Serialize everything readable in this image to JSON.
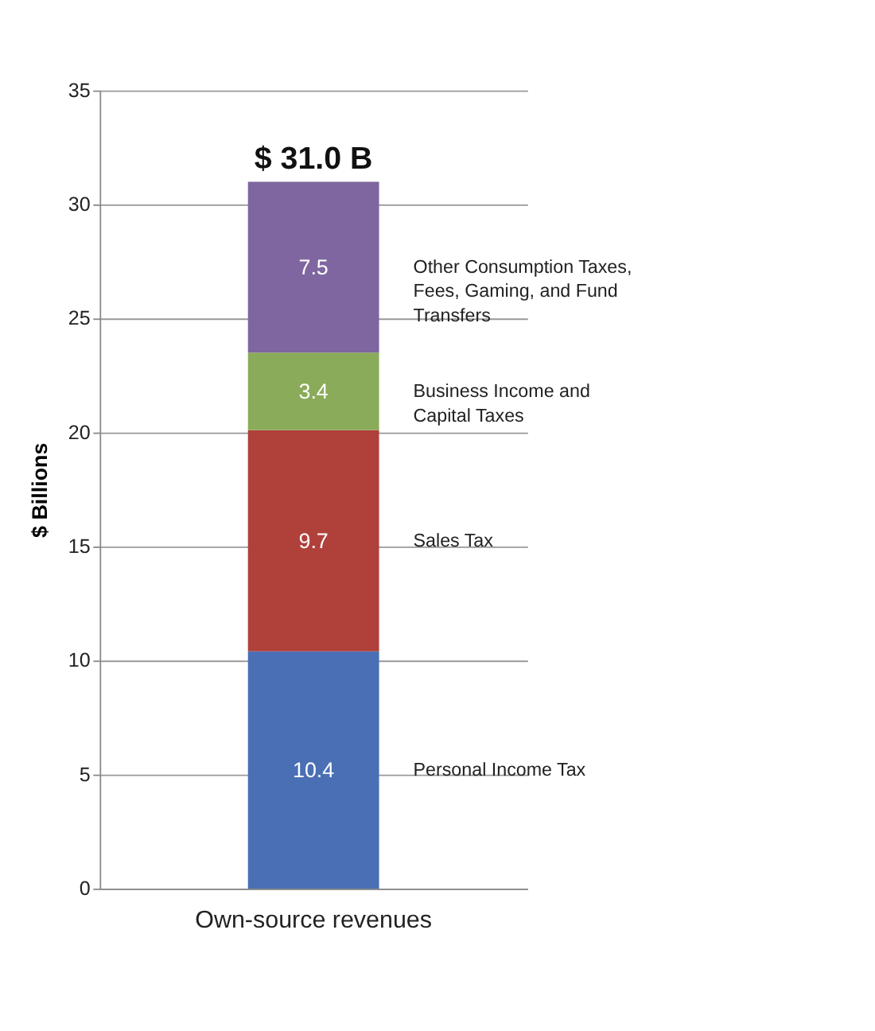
{
  "chart_data": {
    "type": "bar",
    "stacked": true,
    "categories": [
      "Own-source revenues"
    ],
    "ylabel": "$ Billions",
    "series": [
      {
        "name": "Personal Income Tax",
        "color": "#4a6fb5",
        "values": [
          10.4
        ]
      },
      {
        "name": "Sales Tax",
        "color": "#b0403a",
        "values": [
          9.7
        ]
      },
      {
        "name": "Business Income and Capital Taxes",
        "color": "#8aab5a",
        "values": [
          3.4
        ]
      },
      {
        "name": "Other Consumption Taxes, Fees, Gaming, and Fund Transfers",
        "color": "#7f66a0",
        "values": [
          7.5
        ]
      }
    ],
    "data_labels": true,
    "totals": [
      "$ 31.0 B"
    ],
    "ylim": [
      0,
      35
    ],
    "yticks": [
      0,
      5,
      10,
      15,
      20,
      25,
      30,
      35
    ],
    "grid": "y"
  }
}
